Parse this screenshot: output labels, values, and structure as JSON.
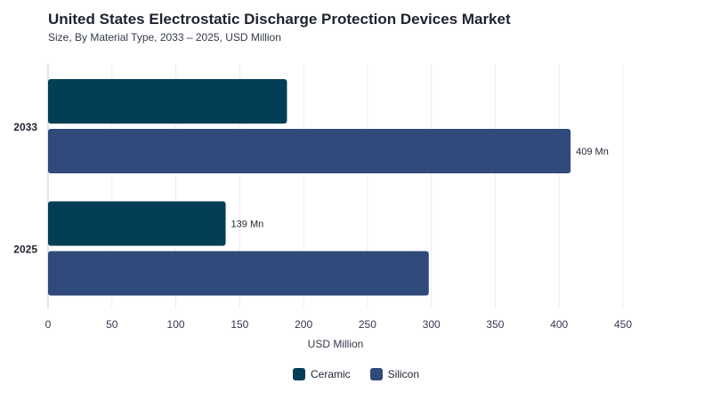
{
  "chart_data": {
    "type": "bar",
    "orientation": "horizontal",
    "title": "United States Electrostatic Discharge Protection Devices Market",
    "subtitle": "Size, By Material Type, 2033 – 2025, USD Million",
    "xlabel": "USD Million",
    "xlim": [
      0,
      450
    ],
    "xticks": [
      0,
      50,
      100,
      150,
      200,
      250,
      300,
      350,
      400,
      450
    ],
    "categories": [
      "2033",
      "2025"
    ],
    "series": [
      {
        "name": "Ceramic",
        "color": "#033e57",
        "values": [
          187,
          139
        ],
        "labels": [
          "",
          "139 Mn"
        ]
      },
      {
        "name": "Silicon",
        "color": "#2f4a7b",
        "values": [
          409,
          298
        ],
        "labels": [
          "409 Mn",
          ""
        ]
      }
    ],
    "grid": "vertical",
    "legend_position": "bottom"
  }
}
